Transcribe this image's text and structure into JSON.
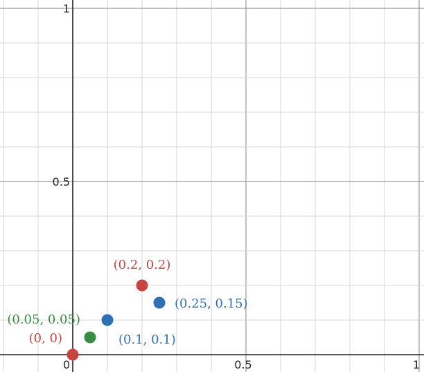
{
  "chart_data": {
    "type": "scatter",
    "grid": true,
    "xlim": [
      -0.2,
      1.02
    ],
    "ylim": [
      -0.05,
      1.02
    ],
    "x_major_ticks": [
      0,
      0.5,
      1
    ],
    "y_major_ticks": [
      0,
      0.5,
      1
    ],
    "x_tick_labels": [
      "0",
      "0.5",
      "1"
    ],
    "y_tick_labels": [
      "0.5",
      "1"
    ],
    "colors": {
      "red": "#c74440",
      "blue": "#2d70b3",
      "green": "#388c46"
    },
    "points": [
      {
        "x": 0,
        "y": 0,
        "color": "#c74440",
        "label": "(0, 0)",
        "label_side": "left"
      },
      {
        "x": 0.05,
        "y": 0.05,
        "color": "#388c46",
        "label": "(0.05, 0.05)",
        "label_side": "upper-left"
      },
      {
        "x": 0.1,
        "y": 0.1,
        "color": "#2d70b3",
        "label": "(0.1, 0.1)",
        "label_side": "below-right"
      },
      {
        "x": 0.2,
        "y": 0.2,
        "color": "#c74440",
        "label": "(0.2, 0.2)",
        "label_side": "above"
      },
      {
        "x": 0.25,
        "y": 0.15,
        "color": "#2d70b3",
        "label": "(0.25, 0.15)",
        "label_side": "right"
      }
    ]
  }
}
